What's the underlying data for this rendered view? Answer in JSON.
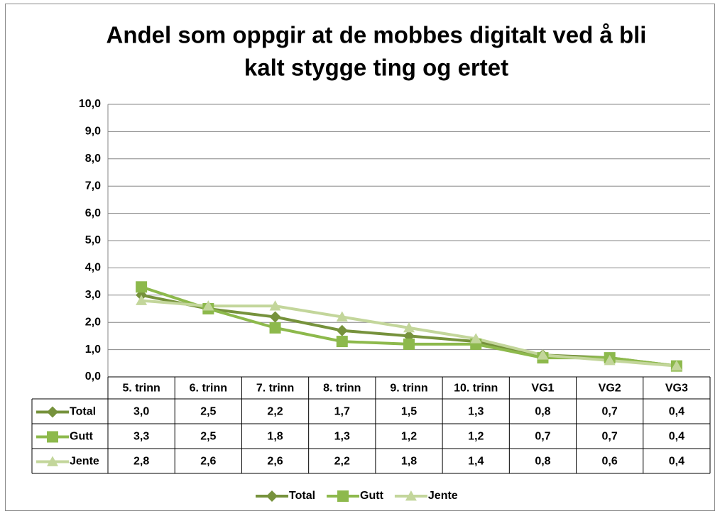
{
  "chart_data": {
    "type": "line",
    "title": [
      "Andel som oppgir at de mobbes digitalt ved å bli",
      "kalt stygge ting og ertet"
    ],
    "categories": [
      "5. trinn",
      "6. trinn",
      "7. trinn",
      "8. trinn",
      "9. trinn",
      "10. trinn",
      "VG1",
      "VG2",
      "VG3"
    ],
    "series": [
      {
        "name": "Total",
        "color": "#76923c",
        "marker": "diamond",
        "values": [
          3.0,
          2.5,
          2.2,
          1.7,
          1.5,
          1.3,
          0.8,
          0.7,
          0.4
        ],
        "value_labels": [
          "3,0",
          "2,5",
          "2,2",
          "1,7",
          "1,5",
          "1,3",
          "0,8",
          "0,7",
          "0,4"
        ]
      },
      {
        "name": "Gutt",
        "color": "#8db94c",
        "marker": "square",
        "values": [
          3.3,
          2.5,
          1.8,
          1.3,
          1.2,
          1.2,
          0.7,
          0.7,
          0.4
        ],
        "value_labels": [
          "3,3",
          "2,5",
          "1,8",
          "1,3",
          "1,2",
          "1,2",
          "0,7",
          "0,7",
          "0,4"
        ]
      },
      {
        "name": "Jente",
        "color": "#c3d69b",
        "marker": "triangle",
        "values": [
          2.8,
          2.6,
          2.6,
          2.2,
          1.8,
          1.4,
          0.8,
          0.6,
          0.4
        ],
        "value_labels": [
          "2,8",
          "2,6",
          "2,6",
          "2,2",
          "1,8",
          "1,4",
          "0,8",
          "0,6",
          "0,4"
        ]
      }
    ],
    "ylim": [
      0,
      10
    ],
    "yticks": [
      {
        "value": 0,
        "label": "0,0"
      },
      {
        "value": 1,
        "label": "1,0"
      },
      {
        "value": 2,
        "label": "2,0"
      },
      {
        "value": 3,
        "label": "3,0"
      },
      {
        "value": 4,
        "label": "4,0"
      },
      {
        "value": 5,
        "label": "5,0"
      },
      {
        "value": 6,
        "label": "6,0"
      },
      {
        "value": 7,
        "label": "7,0"
      },
      {
        "value": 8,
        "label": "8,0"
      },
      {
        "value": 9,
        "label": "9,0"
      },
      {
        "value": 10,
        "label": "10,0"
      }
    ],
    "grid": true,
    "legend": "bottom",
    "data_table": true
  }
}
